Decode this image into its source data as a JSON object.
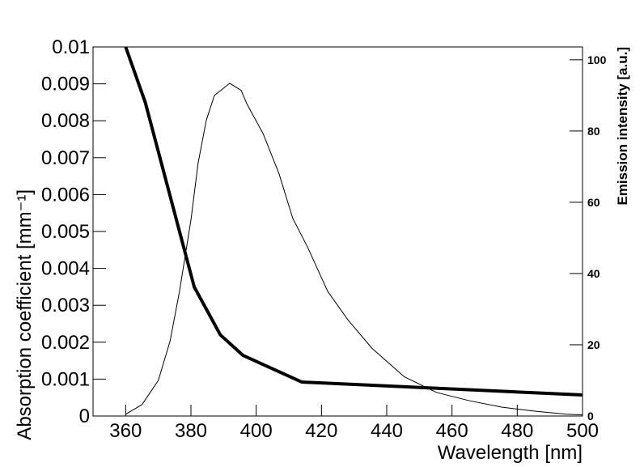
{
  "chart_data": {
    "type": "line",
    "xlabel": "Wavelength [nm]",
    "ylabel": "Absorption coefficient [mm⁻¹]",
    "y2label": "Emission intensity [a.u.]",
    "xlim": [
      350,
      500
    ],
    "xticks": [
      360,
      380,
      400,
      420,
      440,
      460,
      480,
      500
    ],
    "ylim": [
      0,
      0.01
    ],
    "yticks": [
      0,
      0.001,
      0.002,
      0.003,
      0.004,
      0.005,
      0.006,
      0.007,
      0.008,
      0.009,
      0.01
    ],
    "y2lim": [
      0,
      103.6
    ],
    "y2ticks": [
      0,
      20,
      40,
      60,
      80,
      100
    ],
    "series": [
      {
        "color": "#000000",
        "width": 4,
        "x": [
          360,
          366,
          381,
          389,
          396,
          414,
          500
        ],
        "values": [
          0.01,
          0.0085,
          0.0035,
          0.0022,
          0.00164,
          0.00092,
          0.00057
        ]
      },
      {
        "color": "#000000",
        "width": 1,
        "axis": "y2",
        "x": [
          360,
          365,
          370,
          373.6,
          376.5,
          380,
          382.2,
          384.7,
          387.2,
          391.9,
          395.4,
          397.1,
          402.1,
          407,
          411.2,
          415.7,
          421.9,
          428.1,
          435.5,
          445.4,
          455.3,
          465.3,
          475.2,
          485.1,
          495,
          500
        ],
        "values": [
          0.5,
          3.2,
          10,
          21,
          35,
          55,
          71,
          83,
          90,
          93.4,
          91.4,
          87.7,
          79.3,
          68,
          55.5,
          47.5,
          35,
          27,
          19,
          11,
          6.6,
          4.3,
          2.5,
          1.4,
          0.5,
          0.3
        ]
      }
    ]
  }
}
